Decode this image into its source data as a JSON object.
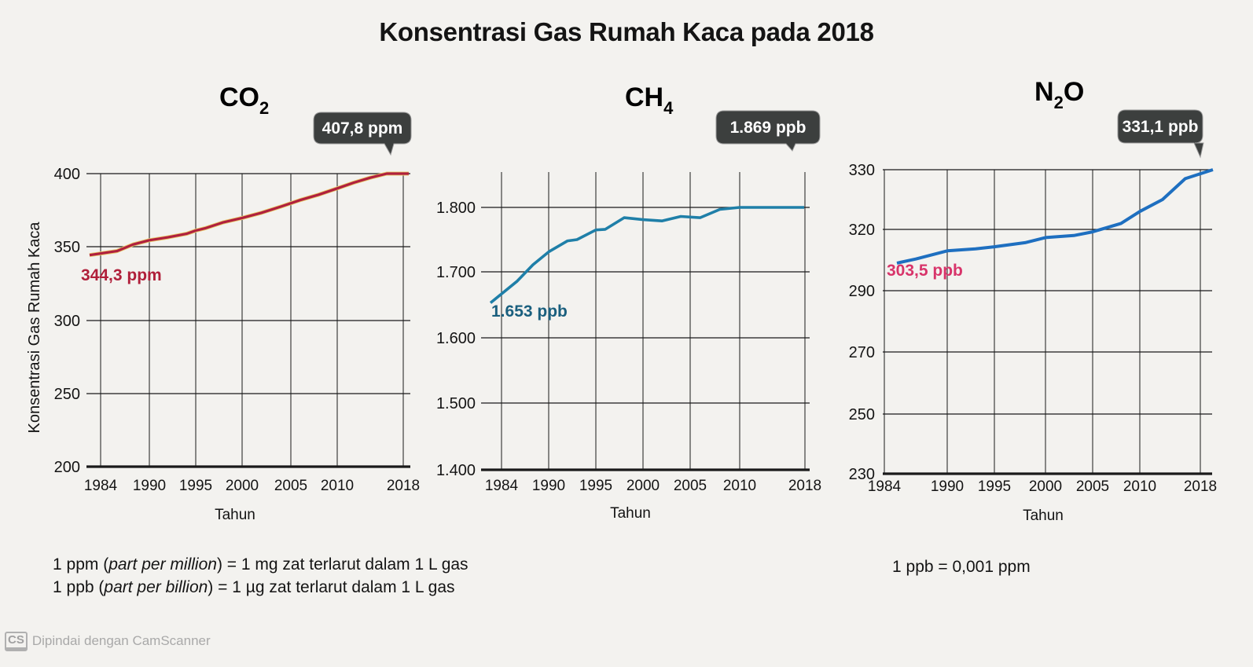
{
  "title": "Konsentrasi Gas Rumah Kaca pada 2018",
  "y_axis_label": "Konsentrasi Gas Rumah Kaca",
  "x_axis_label": "Tahun",
  "notes": {
    "ppm_prefix": "1 ppm (",
    "ppm_italic": "part per million",
    "ppm_suffix": ") = 1 mg zat terlarut dalam 1 L gas",
    "ppb_prefix": "1 ppb (",
    "ppb_italic": "part per billion",
    "ppb_suffix": ") = 1 µg zat terlarut dalam 1 L gas",
    "conversion": "1 ppb = 0,001 ppm"
  },
  "footer": {
    "logo": "CS",
    "text": "Dipindai dengan CamScanner"
  },
  "colors": {
    "co2_line": "#b0203e",
    "co2_start_label": "#b01f3a",
    "ch4_line": "#1f7fa8",
    "ch4_start_label": "#1a5f7e",
    "n2o_line": "#1e6fc0",
    "n2o_start_label": "#d8346a",
    "bubble": "#3c3f3e",
    "grid": "#1a1a1a"
  },
  "chart_data": [
    {
      "type": "line",
      "title": "CO2",
      "gas": "CO",
      "subscript": "2",
      "xlabel": "Tahun",
      "ylabel": "Konsentrasi Gas Rumah Kaca",
      "x_ticks": [
        "1984",
        "1990",
        "1995",
        "2000",
        "2005",
        "2010",
        "2018"
      ],
      "y_ticks": [
        "400",
        "350",
        "300",
        "250",
        "200"
      ],
      "ylim": [
        200,
        400
      ],
      "unit": "ppm",
      "start_label": "344,3 ppm",
      "end_label": "407,8 ppm",
      "grid": true,
      "x": [
        1984,
        1986,
        1988,
        1990,
        1992,
        1994,
        1995,
        1996,
        1998,
        2000,
        2002,
        2004,
        2006,
        2008,
        2010,
        2012,
        2014,
        2016,
        2018
      ],
      "values": [
        344.3,
        347.0,
        351.5,
        354.4,
        356.4,
        358.8,
        361.0,
        362.6,
        366.7,
        369.7,
        373.2,
        377.5,
        381.9,
        385.6,
        389.9,
        393.8,
        397.2,
        404.2,
        407.8
      ]
    },
    {
      "type": "line",
      "title": "CH4",
      "gas": "CH",
      "subscript": "4",
      "xlabel": "Tahun",
      "ylabel": "",
      "x_ticks": [
        "1984",
        "1990",
        "1995",
        "2000",
        "2005",
        "2010",
        "2018"
      ],
      "y_ticks": [
        "1.800",
        "1.700",
        "1.600",
        "1.500",
        "1.400"
      ],
      "ylim": [
        1400,
        1800
      ],
      "unit": "ppb",
      "start_label": "1.653 ppb",
      "end_label": "1.869 ppb",
      "grid": true,
      "x": [
        1984,
        1986,
        1988,
        1990,
        1992,
        1993,
        1995,
        1996,
        1998,
        2000,
        2002,
        2004,
        2006,
        2008,
        2010,
        2012,
        2014,
        2016,
        2018
      ],
      "values": [
        1653,
        1686,
        1711,
        1731,
        1748,
        1750,
        1765,
        1766,
        1784,
        1781,
        1779,
        1786,
        1784,
        1797,
        1810,
        1819,
        1834,
        1854,
        1869
      ]
    },
    {
      "type": "line",
      "title": "N2O",
      "gas": "N",
      "subscript": "2",
      "gas_suffix": "O",
      "xlabel": "Tahun",
      "ylabel": "",
      "x_ticks": [
        "1984",
        "1990",
        "1995",
        "2000",
        "2005",
        "2010",
        "2018"
      ],
      "y_ticks": [
        "330",
        "320",
        "290",
        "270",
        "250",
        "230"
      ],
      "ylim": [
        230,
        330
      ],
      "unit": "ppb",
      "start_label": "303,5 ppb",
      "end_label": "331,1 ppb",
      "grid": true,
      "x": [
        1984,
        1987,
        1990,
        1993,
        1995,
        1998,
        2000,
        2003,
        2005,
        2008,
        2010,
        2013,
        2016,
        2018
      ],
      "values": [
        303.5,
        305.5,
        309.5,
        310.5,
        311.5,
        313.5,
        316.0,
        317.0,
        318.8,
        321.0,
        323.0,
        325.0,
        328.5,
        331.1
      ]
    }
  ]
}
